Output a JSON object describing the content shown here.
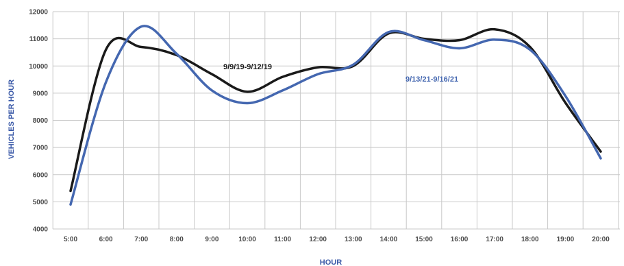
{
  "chart_data": {
    "type": "line",
    "xlabel": "HOUR",
    "ylabel": "VEHICLES PER HOUR",
    "categories": [
      "5:00",
      "6:00",
      "7:00",
      "8:00",
      "9:00",
      "10:00",
      "11:00",
      "12:00",
      "13:00",
      "14:00",
      "15:00",
      "16:00",
      "17:00",
      "18:00",
      "19:00",
      "20:00"
    ],
    "ylim": [
      4000,
      12000
    ],
    "yticks": [
      4000,
      5000,
      6000,
      7000,
      8000,
      9000,
      10000,
      11000,
      12000
    ],
    "grid": true,
    "series": [
      {
        "name": "9/9/19-9/12/19",
        "color": "#1a1a1a",
        "values": [
          5400,
          10600,
          10700,
          10400,
          9700,
          9050,
          9600,
          9950,
          10000,
          11200,
          11000,
          10950,
          11350,
          10700,
          8650,
          6850
        ]
      },
      {
        "name": "9/13/21-9/16/21",
        "color": "#4467b0",
        "values": [
          4900,
          9400,
          11450,
          10450,
          9100,
          8630,
          9100,
          9700,
          10050,
          11250,
          10950,
          10650,
          10970,
          10600,
          8900,
          6600
        ]
      }
    ]
  }
}
